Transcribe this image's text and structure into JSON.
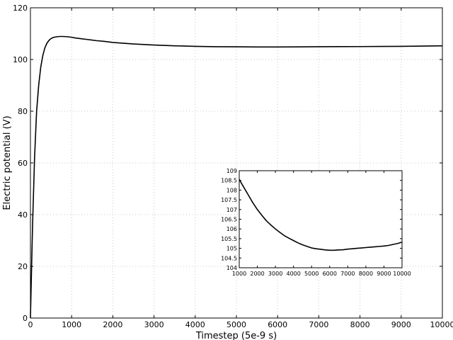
{
  "chart_data": [
    {
      "type": "line",
      "title": "",
      "xlabel": "Timestep (5e-9 s)",
      "ylabel": "Electric potential (V)",
      "xlim": [
        0,
        10000
      ],
      "ylim": [
        0,
        120
      ],
      "xticks": [
        0,
        1000,
        2000,
        3000,
        4000,
        5000,
        6000,
        7000,
        8000,
        9000,
        10000
      ],
      "yticks": [
        0,
        20,
        40,
        60,
        80,
        100,
        120
      ],
      "grid": true,
      "series": [
        {
          "color": "#000000",
          "x": [
            0,
            50,
            100,
            150,
            200,
            250,
            300,
            350,
            400,
            450,
            500,
            550,
            600,
            700,
            800,
            900,
            1000,
            1100,
            1200,
            1400,
            1600,
            1800,
            2000,
            2500,
            3000,
            3500,
            4000,
            4500,
            5000,
            5500,
            6000,
            6500,
            7000,
            7500,
            8000,
            8500,
            9000,
            9500,
            10000
          ],
          "y": [
            0,
            35,
            62,
            80,
            90,
            97,
            101.5,
            104.5,
            106.3,
            107.4,
            108.1,
            108.5,
            108.7,
            108.9,
            108.9,
            108.8,
            108.6,
            108.3,
            108.1,
            107.7,
            107.3,
            107.0,
            106.6,
            106.0,
            105.6,
            105.3,
            105.1,
            104.95,
            104.9,
            104.85,
            104.85,
            104.88,
            104.95,
            104.98,
            105.0,
            105.05,
            105.1,
            105.2,
            105.3
          ]
        }
      ]
    },
    {
      "type": "line",
      "title": "",
      "xlabel": "",
      "ylabel": "",
      "xlim": [
        1000,
        10000
      ],
      "ylim": [
        104,
        109
      ],
      "xticks": [
        1000,
        2000,
        3000,
        4000,
        5000,
        6000,
        7000,
        8000,
        9000,
        10000
      ],
      "yticks": [
        104,
        104.5,
        105,
        105.5,
        106,
        106.5,
        107,
        107.5,
        108,
        108.5,
        109
      ],
      "grid": false,
      "series": [
        {
          "color": "#000000",
          "x": [
            1000,
            1250,
            1500,
            1750,
            2000,
            2250,
            2500,
            2750,
            3000,
            3250,
            3500,
            3750,
            4000,
            4250,
            4500,
            4750,
            5000,
            5250,
            5500,
            5750,
            6000,
            6250,
            6500,
            6750,
            7000,
            7250,
            7500,
            7750,
            8000,
            8250,
            8500,
            8750,
            9000,
            9250,
            9500,
            9750,
            10000
          ],
          "y": [
            108.55,
            108.15,
            107.75,
            107.35,
            107.0,
            106.7,
            106.42,
            106.2,
            106.0,
            105.82,
            105.65,
            105.52,
            105.4,
            105.28,
            105.18,
            105.1,
            105.02,
            104.98,
            104.95,
            104.92,
            104.9,
            104.9,
            104.92,
            104.93,
            104.96,
            104.98,
            105.0,
            105.02,
            105.04,
            105.06,
            105.08,
            105.1,
            105.12,
            105.15,
            105.2,
            105.25,
            105.32
          ]
        }
      ]
    }
  ]
}
